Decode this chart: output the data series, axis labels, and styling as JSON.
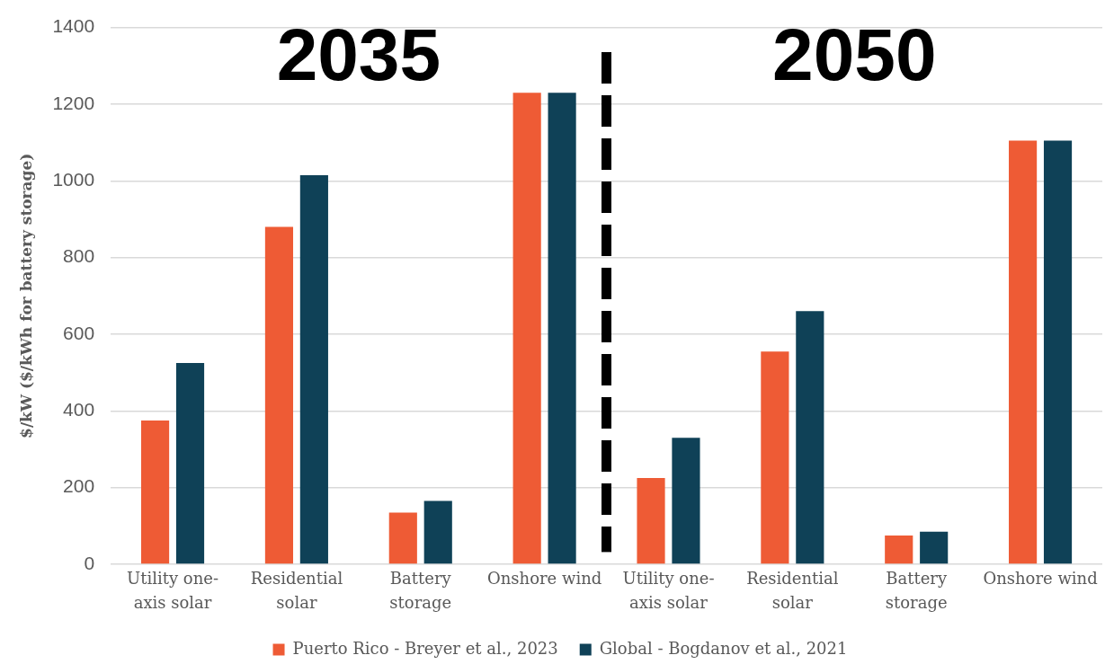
{
  "chart_data": {
    "type": "bar",
    "categories": [
      "Utility one-axis solar",
      "Residential solar",
      "Battery storage",
      "Onshore wind",
      "Utility one-axis solar",
      "Residential solar",
      "Battery storage",
      "Onshore wind"
    ],
    "series": [
      {
        "name": "Puerto Rico - Breyer et al., 2023",
        "color": "#ee5b35",
        "values": [
          375,
          880,
          135,
          1230,
          225,
          555,
          75,
          1105
        ]
      },
      {
        "name": "Global - Bogdanov et al., 2021",
        "color": "#0f4157",
        "values": [
          525,
          1015,
          165,
          1230,
          330,
          660,
          85,
          1105
        ]
      }
    ],
    "ylabel": "$/kW ($/kWh for battery storage)",
    "ylim": [
      0,
      1400
    ],
    "yticks": [
      0,
      200,
      400,
      600,
      800,
      1000,
      1200,
      1400
    ],
    "grid": "y",
    "legend": "bottom",
    "annotations": [
      "2035",
      "2050"
    ]
  }
}
